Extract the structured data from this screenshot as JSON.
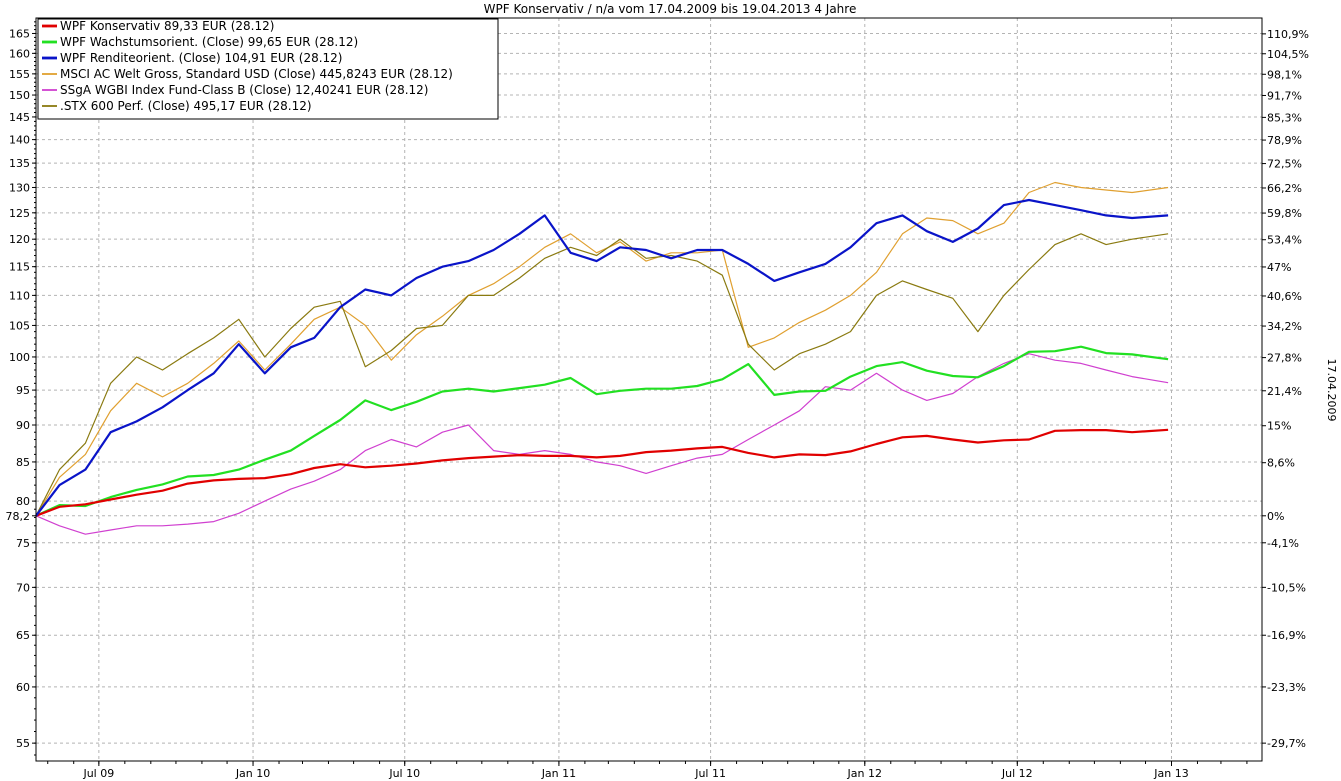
{
  "chart_data": {
    "type": "line",
    "title": "WPF Konservativ / n/a vom 17.04.2009 bis 19.04.2013 4 Jahre",
    "y_right_label": "17.04.2009",
    "base_value": 78.2,
    "log_scale": true,
    "grid": true,
    "legend_position": "top-left",
    "ylim": [
      53.5,
      169
    ],
    "xlim": [
      "2009-04-17",
      "2013-04-19"
    ],
    "y_ticks": [
      55,
      60,
      65,
      70,
      75,
      78.2,
      80,
      85,
      90,
      95,
      100,
      105,
      110,
      115,
      120,
      125,
      130,
      135,
      140,
      145,
      150,
      155,
      160,
      165
    ],
    "y_tick_labels": [
      "55",
      "60",
      "65",
      "70",
      "75",
      "78,2",
      "80",
      "85",
      "90",
      "95",
      "100",
      "105",
      "110",
      "115",
      "120",
      "125",
      "130",
      "135",
      "140",
      "145",
      "150",
      "155",
      "160",
      "165"
    ],
    "y_right_ticks": [
      {
        "value": 55.0,
        "label": "-29,7%"
      },
      {
        "value": 60.0,
        "label": "-23,3%"
      },
      {
        "value": 65.0,
        "label": "-16,9%"
      },
      {
        "value": 70.0,
        "label": "-10,5%"
      },
      {
        "value": 75.0,
        "label": "-4,1%"
      },
      {
        "value": 78.2,
        "label": "0%"
      },
      {
        "value": 84.9,
        "label": "8,6%"
      },
      {
        "value": 89.9,
        "label": "15%"
      },
      {
        "value": 94.9,
        "label": "21,4%"
      },
      {
        "value": 99.9,
        "label": "27,8%"
      },
      {
        "value": 104.9,
        "label": "34,2%"
      },
      {
        "value": 109.9,
        "label": "40,6%"
      },
      {
        "value": 114.95,
        "label": "47%"
      },
      {
        "value": 119.9,
        "label": "53,4%"
      },
      {
        "value": 124.95,
        "label": "59,8%"
      },
      {
        "value": 129.9,
        "label": "66,2%"
      },
      {
        "value": 134.9,
        "label": "72,5%"
      },
      {
        "value": 139.9,
        "label": "78,9%"
      },
      {
        "value": 144.9,
        "label": "85,3%"
      },
      {
        "value": 149.9,
        "label": "91,7%"
      },
      {
        "value": 154.9,
        "label": "98,1%"
      },
      {
        "value": 159.9,
        "label": "104,5%"
      },
      {
        "value": 164.9,
        "label": "110,9%"
      }
    ],
    "x_ticks": [
      {
        "date": "2009-07-01",
        "label": "Jul 09"
      },
      {
        "date": "2010-01-01",
        "label": "Jan 10"
      },
      {
        "date": "2010-07-01",
        "label": "Jul 10"
      },
      {
        "date": "2011-01-01",
        "label": "Jan 11"
      },
      {
        "date": "2011-07-01",
        "label": "Jul 11"
      },
      {
        "date": "2012-01-01",
        "label": "Jan 12"
      },
      {
        "date": "2012-07-01",
        "label": "Jul 12"
      },
      {
        "date": "2013-01-01",
        "label": "Jan 13"
      }
    ],
    "x": [
      "2009-04-17",
      "2009-05-15",
      "2009-06-15",
      "2009-07-15",
      "2009-08-15",
      "2009-09-15",
      "2009-10-15",
      "2009-11-15",
      "2009-12-15",
      "2010-01-15",
      "2010-02-15",
      "2010-03-15",
      "2010-04-15",
      "2010-05-15",
      "2010-06-15",
      "2010-07-15",
      "2010-08-15",
      "2010-09-15",
      "2010-10-15",
      "2010-11-15",
      "2010-12-15",
      "2011-01-15",
      "2011-02-15",
      "2011-03-15",
      "2011-04-15",
      "2011-05-15",
      "2011-06-15",
      "2011-07-15",
      "2011-08-15",
      "2011-09-15",
      "2011-10-15",
      "2011-11-15",
      "2011-12-15",
      "2012-01-15",
      "2012-02-15",
      "2012-03-15",
      "2012-04-15",
      "2012-05-15",
      "2012-06-15",
      "2012-07-15",
      "2012-08-15",
      "2012-09-15",
      "2012-10-15",
      "2012-11-15",
      "2012-12-28"
    ],
    "series": [
      {
        "name": "WPF Konservativ 89,33 EUR (28.12)",
        "color": "#e00000",
        "width": 2.2,
        "values": [
          78.2,
          79.3,
          79.6,
          80.2,
          80.8,
          81.3,
          82.2,
          82.6,
          82.8,
          82.9,
          83.4,
          84.2,
          84.7,
          84.3,
          84.5,
          84.8,
          85.2,
          85.5,
          85.7,
          85.9,
          85.8,
          85.8,
          85.6,
          85.8,
          86.3,
          86.5,
          86.8,
          87.0,
          86.2,
          85.6,
          86.0,
          85.9,
          86.4,
          87.4,
          88.3,
          88.5,
          88.0,
          87.6,
          87.9,
          88.0,
          89.2,
          89.3,
          89.3,
          89.0,
          89.33
        ]
      },
      {
        "name": "WPF Wachstumsorient. (Close) 99,65 EUR (28.12)",
        "color": "#22e022",
        "width": 2.2,
        "values": [
          78.2,
          79.5,
          79.4,
          80.5,
          81.4,
          82.1,
          83.1,
          83.3,
          84.0,
          85.3,
          86.5,
          88.5,
          90.7,
          93.5,
          92.1,
          93.3,
          94.8,
          95.2,
          94.8,
          95.3,
          95.8,
          96.8,
          94.4,
          94.9,
          95.2,
          95.2,
          95.6,
          96.6,
          98.9,
          94.3,
          94.8,
          94.9,
          97.0,
          98.6,
          99.2,
          97.9,
          97.1,
          96.9,
          98.6,
          100.8,
          100.9,
          101.6,
          100.6,
          100.4,
          99.65
        ]
      },
      {
        "name": "WPF Renditeorient. (Close) 104,91 EUR (28.12)",
        "color": "#0a14c8",
        "width": 2.2,
        "values": [
          78.2,
          82.0,
          84.0,
          89.0,
          90.5,
          92.5,
          95.0,
          97.5,
          102.0,
          97.5,
          101.5,
          103.0,
          108.0,
          111.0,
          110.0,
          113.0,
          115.0,
          116.0,
          118.0,
          121.0,
          124.5,
          117.5,
          116.0,
          118.5,
          118.0,
          116.5,
          118.0,
          118.0,
          115.5,
          112.5,
          114.0,
          115.5,
          118.5,
          123.0,
          124.5,
          121.5,
          119.5,
          122.0,
          126.5,
          127.5,
          126.5,
          125.5,
          124.5,
          124.0,
          124.5
        ]
      },
      {
        "name": "MSCI AC Welt Gross, Standard USD (Close) 445,8243 EUR (28.12)",
        "color": "#e0a030",
        "width": 1.2,
        "values": [
          78.2,
          83.0,
          86.0,
          92.0,
          96.0,
          94.0,
          96.0,
          99.0,
          102.5,
          98.0,
          102.0,
          106.0,
          108.0,
          105.0,
          99.5,
          103.5,
          106.5,
          110.0,
          112.0,
          115.0,
          118.5,
          121.0,
          117.5,
          119.5,
          116.0,
          117.5,
          117.5,
          118.0,
          101.5,
          103.0,
          105.5,
          107.5,
          110.0,
          114.0,
          121.0,
          124.0,
          123.5,
          121.0,
          123.0,
          129.0,
          131.0,
          130.0,
          129.5,
          129.0,
          130.0
        ]
      },
      {
        "name": "SSgA WGBI Index Fund-Class B (Close) 12,40241 EUR (28.12)",
        "color": "#d040d0",
        "width": 1.2,
        "values": [
          78.2,
          77.0,
          76.0,
          76.5,
          77.0,
          77.0,
          77.2,
          77.5,
          78.5,
          80.0,
          81.5,
          82.5,
          84.0,
          86.5,
          88.0,
          87.0,
          89.0,
          90.0,
          86.5,
          86.0,
          86.5,
          86.0,
          85.0,
          84.5,
          83.5,
          84.5,
          85.5,
          86.0,
          88.0,
          90.0,
          92.0,
          95.5,
          95.0,
          97.5,
          95.0,
          93.5,
          94.5,
          97.0,
          99.0,
          100.5,
          99.5,
          99.0,
          98.0,
          97.0,
          96.1
        ]
      },
      {
        "name": ".STX 600 Perf. (Close) 495,17 EUR (28.12)",
        "color": "#8a7a10",
        "width": 1.2,
        "values": [
          78.2,
          84.0,
          87.5,
          96.0,
          100.0,
          98.0,
          100.5,
          103.0,
          106.0,
          100.0,
          104.5,
          108.0,
          109.0,
          98.5,
          101.0,
          104.5,
          105.0,
          110.0,
          110.0,
          113.0,
          116.5,
          118.5,
          117.0,
          120.0,
          116.5,
          117.0,
          116.0,
          113.5,
          102.0,
          98.0,
          100.5,
          102.0,
          104.0,
          110.0,
          112.5,
          111.0,
          109.5,
          104.0,
          110.0,
          114.5,
          119.0,
          121.0,
          119.0,
          120.0,
          121.0
        ]
      }
    ]
  }
}
